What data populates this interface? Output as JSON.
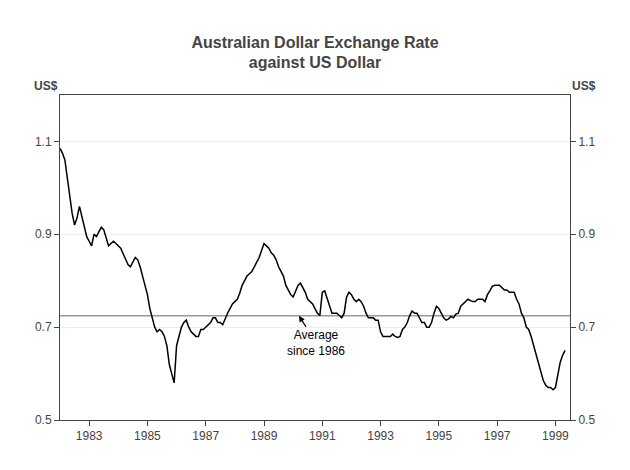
{
  "chart_data": {
    "type": "line",
    "title": "Australian Dollar Exchange Rate\nagainst US Dollar",
    "ylabel": "US$",
    "y2label": "US$",
    "color": "#000000",
    "grid": true,
    "xlim": [
      1982.0,
      1999.5
    ],
    "xticks": [
      1983,
      1985,
      1987,
      1989,
      1991,
      1993,
      1995,
      1997,
      1999
    ],
    "ylim": [
      0.5,
      1.2
    ],
    "yticks": [
      0.5,
      0.7,
      0.9,
      1.1
    ],
    "y2lim": [
      0.5,
      1.2
    ],
    "y2ticks": [
      0.5,
      0.7,
      0.9,
      1.1
    ],
    "hlines": [
      {
        "y": 0.7245,
        "color": "#999999"
      }
    ],
    "annotations": [
      {
        "text": "Average\nsince 1986",
        "x": 1990.8,
        "y": 0.665,
        "arrow_x": 1990.2,
        "arrow_y": 0.7245
      }
    ],
    "x": [
      1982.0,
      1982.083,
      1982.167,
      1982.25,
      1982.333,
      1982.417,
      1982.5,
      1982.583,
      1982.667,
      1982.75,
      1982.833,
      1982.917,
      1983.0,
      1983.083,
      1983.167,
      1983.25,
      1983.333,
      1983.417,
      1983.5,
      1983.583,
      1983.667,
      1983.75,
      1983.833,
      1983.917,
      1984.0,
      1984.083,
      1984.167,
      1984.25,
      1984.333,
      1984.417,
      1984.5,
      1984.583,
      1984.667,
      1984.75,
      1984.833,
      1984.917,
      1985.0,
      1985.083,
      1985.167,
      1985.25,
      1985.333,
      1985.417,
      1985.5,
      1985.583,
      1985.667,
      1985.75,
      1985.833,
      1985.917,
      1986.0,
      1986.083,
      1986.167,
      1986.25,
      1986.333,
      1986.417,
      1986.5,
      1986.583,
      1986.667,
      1986.75,
      1986.833,
      1986.917,
      1987.0,
      1987.083,
      1987.167,
      1987.25,
      1987.333,
      1987.417,
      1987.5,
      1987.583,
      1987.667,
      1987.75,
      1987.833,
      1987.917,
      1988.0,
      1988.083,
      1988.167,
      1988.25,
      1988.333,
      1988.417,
      1988.5,
      1988.583,
      1988.667,
      1988.75,
      1988.833,
      1988.917,
      1989.0,
      1989.083,
      1989.167,
      1989.25,
      1989.333,
      1989.417,
      1989.5,
      1989.583,
      1989.667,
      1989.75,
      1989.833,
      1989.917,
      1990.0,
      1990.083,
      1990.167,
      1990.25,
      1990.333,
      1990.417,
      1990.5,
      1990.583,
      1990.667,
      1990.75,
      1990.833,
      1990.917,
      1991.0,
      1991.083,
      1991.167,
      1991.25,
      1991.333,
      1991.417,
      1991.5,
      1991.583,
      1991.667,
      1991.75,
      1991.833,
      1991.917,
      1992.0,
      1992.083,
      1992.167,
      1992.25,
      1992.333,
      1992.417,
      1992.5,
      1992.583,
      1992.667,
      1992.75,
      1992.833,
      1992.917,
      1993.0,
      1993.083,
      1993.167,
      1993.25,
      1993.333,
      1993.417,
      1993.5,
      1993.583,
      1993.667,
      1993.75,
      1993.833,
      1993.917,
      1994.0,
      1994.083,
      1994.167,
      1994.25,
      1994.333,
      1994.417,
      1994.5,
      1994.583,
      1994.667,
      1994.75,
      1994.833,
      1994.917,
      1995.0,
      1995.083,
      1995.167,
      1995.25,
      1995.333,
      1995.417,
      1995.5,
      1995.583,
      1995.667,
      1995.75,
      1995.833,
      1995.917,
      1996.0,
      1996.083,
      1996.167,
      1996.25,
      1996.333,
      1996.417,
      1996.5,
      1996.583,
      1996.667,
      1996.75,
      1996.833,
      1996.917,
      1997.0,
      1997.083,
      1997.167,
      1997.25,
      1997.333,
      1997.417,
      1997.5,
      1997.583,
      1997.667,
      1997.75,
      1997.833,
      1997.917,
      1998.0,
      1998.083,
      1998.167,
      1998.25,
      1998.333,
      1998.417,
      1998.5,
      1998.583,
      1998.667,
      1998.75,
      1998.833,
      1998.917,
      1999.0,
      1999.083,
      1999.167,
      1999.25,
      1999.333
    ],
    "values": [
      1.085,
      1.075,
      1.06,
      1.02,
      0.98,
      0.945,
      0.92,
      0.935,
      0.96,
      0.94,
      0.92,
      0.895,
      0.885,
      0.875,
      0.9,
      0.895,
      0.905,
      0.915,
      0.91,
      0.895,
      0.875,
      0.88,
      0.885,
      0.88,
      0.875,
      0.87,
      0.858,
      0.845,
      0.835,
      0.83,
      0.84,
      0.85,
      0.845,
      0.83,
      0.81,
      0.79,
      0.77,
      0.74,
      0.72,
      0.7,
      0.69,
      0.695,
      0.69,
      0.68,
      0.66,
      0.62,
      0.6,
      0.58,
      0.66,
      0.68,
      0.7,
      0.71,
      0.715,
      0.7,
      0.69,
      0.685,
      0.68,
      0.68,
      0.695,
      0.695,
      0.7,
      0.705,
      0.71,
      0.72,
      0.72,
      0.71,
      0.71,
      0.705,
      0.72,
      0.73,
      0.74,
      0.75,
      0.755,
      0.76,
      0.773,
      0.79,
      0.8,
      0.81,
      0.815,
      0.82,
      0.83,
      0.84,
      0.85,
      0.865,
      0.88,
      0.875,
      0.87,
      0.86,
      0.855,
      0.845,
      0.83,
      0.82,
      0.81,
      0.79,
      0.78,
      0.77,
      0.765,
      0.778,
      0.79,
      0.795,
      0.785,
      0.775,
      0.76,
      0.755,
      0.75,
      0.74,
      0.73,
      0.725,
      0.775,
      0.778,
      0.76,
      0.745,
      0.73,
      0.73,
      0.73,
      0.725,
      0.72,
      0.73,
      0.765,
      0.775,
      0.77,
      0.76,
      0.755,
      0.76,
      0.755,
      0.745,
      0.73,
      0.72,
      0.72,
      0.72,
      0.715,
      0.715,
      0.69,
      0.68,
      0.68,
      0.68,
      0.68,
      0.685,
      0.68,
      0.678,
      0.68,
      0.695,
      0.7,
      0.71,
      0.725,
      0.735,
      0.73,
      0.73,
      0.72,
      0.71,
      0.71,
      0.7,
      0.7,
      0.71,
      0.73,
      0.745,
      0.74,
      0.73,
      0.72,
      0.715,
      0.718,
      0.723,
      0.72,
      0.728,
      0.73,
      0.745,
      0.75,
      0.755,
      0.76,
      0.757,
      0.755,
      0.755,
      0.76,
      0.76,
      0.76,
      0.755,
      0.77,
      0.778,
      0.788,
      0.79,
      0.79,
      0.79,
      0.785,
      0.78,
      0.78,
      0.775,
      0.775,
      0.775,
      0.76,
      0.75,
      0.73,
      0.72,
      0.7,
      0.695,
      0.68,
      0.66,
      0.64,
      0.62,
      0.6,
      0.585,
      0.575,
      0.57,
      0.57,
      0.565,
      0.57,
      0.6,
      0.625,
      0.64,
      0.65
    ]
  }
}
